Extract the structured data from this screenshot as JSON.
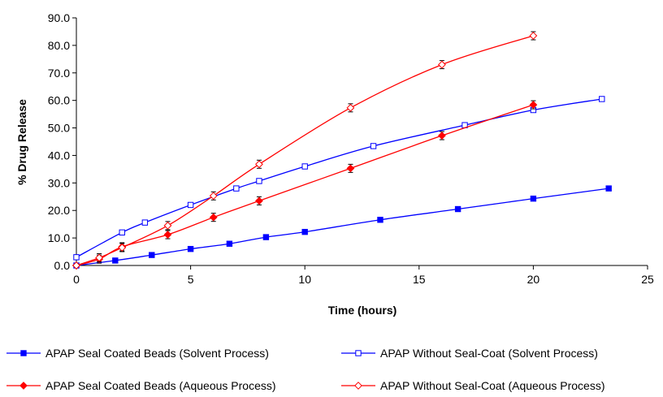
{
  "chart_data": {
    "type": "line",
    "title": "",
    "xlabel": "Time (hours)",
    "ylabel": "% Drug Release",
    "xlim": [
      0,
      25
    ],
    "ylim": [
      0,
      90
    ],
    "x_ticks": [
      "0",
      "5",
      "10",
      "15",
      "20",
      "25"
    ],
    "y_ticks": [
      "0.0",
      "10.0",
      "20.0",
      "30.0",
      "40.0",
      "50.0",
      "60.0",
      "70.0",
      "80.0",
      "90.0"
    ],
    "grid": false,
    "legend_position": "bottom",
    "series": [
      {
        "name": "APAP Seal Coated Beads (Solvent Process)",
        "color": "#0000ff",
        "marker": "filled-square",
        "x": [
          0,
          1.7,
          3.3,
          5,
          6.7,
          8.3,
          10,
          13.3,
          16.7,
          20,
          23.3
        ],
        "y": [
          0,
          1.8,
          3.8,
          6.0,
          7.9,
          10.3,
          12.2,
          16.6,
          20.5,
          24.3,
          28.0
        ]
      },
      {
        "name": "APAP Without Seal-Coat (Solvent Process)",
        "color": "#0000ff",
        "marker": "open-square",
        "x": [
          0,
          2,
          3,
          5,
          7,
          8,
          10,
          13,
          17,
          20,
          23
        ],
        "y": [
          3.0,
          12.0,
          15.6,
          22.0,
          28.0,
          30.7,
          36.0,
          43.4,
          51.0,
          56.5,
          60.5
        ]
      },
      {
        "name": "APAP Seal Coated Beads (Aqueous Process)",
        "color": "#ff0000",
        "marker": "filled-diamond",
        "x": [
          0,
          1,
          2,
          4,
          6,
          8,
          12,
          16,
          20
        ],
        "y": [
          0,
          2.3,
          6.8,
          11.2,
          17.5,
          23.5,
          35.3,
          47.2,
          58.4
        ]
      },
      {
        "name": "APAP Without Seal-Coat (Aqueous Process)",
        "color": "#ff0000",
        "marker": "open-diamond",
        "x": [
          0,
          1,
          2,
          4,
          6,
          8,
          12,
          16,
          20
        ],
        "y": [
          0,
          2.8,
          6.5,
          14.5,
          25.3,
          36.8,
          57.3,
          73.0,
          83.5
        ]
      }
    ]
  }
}
